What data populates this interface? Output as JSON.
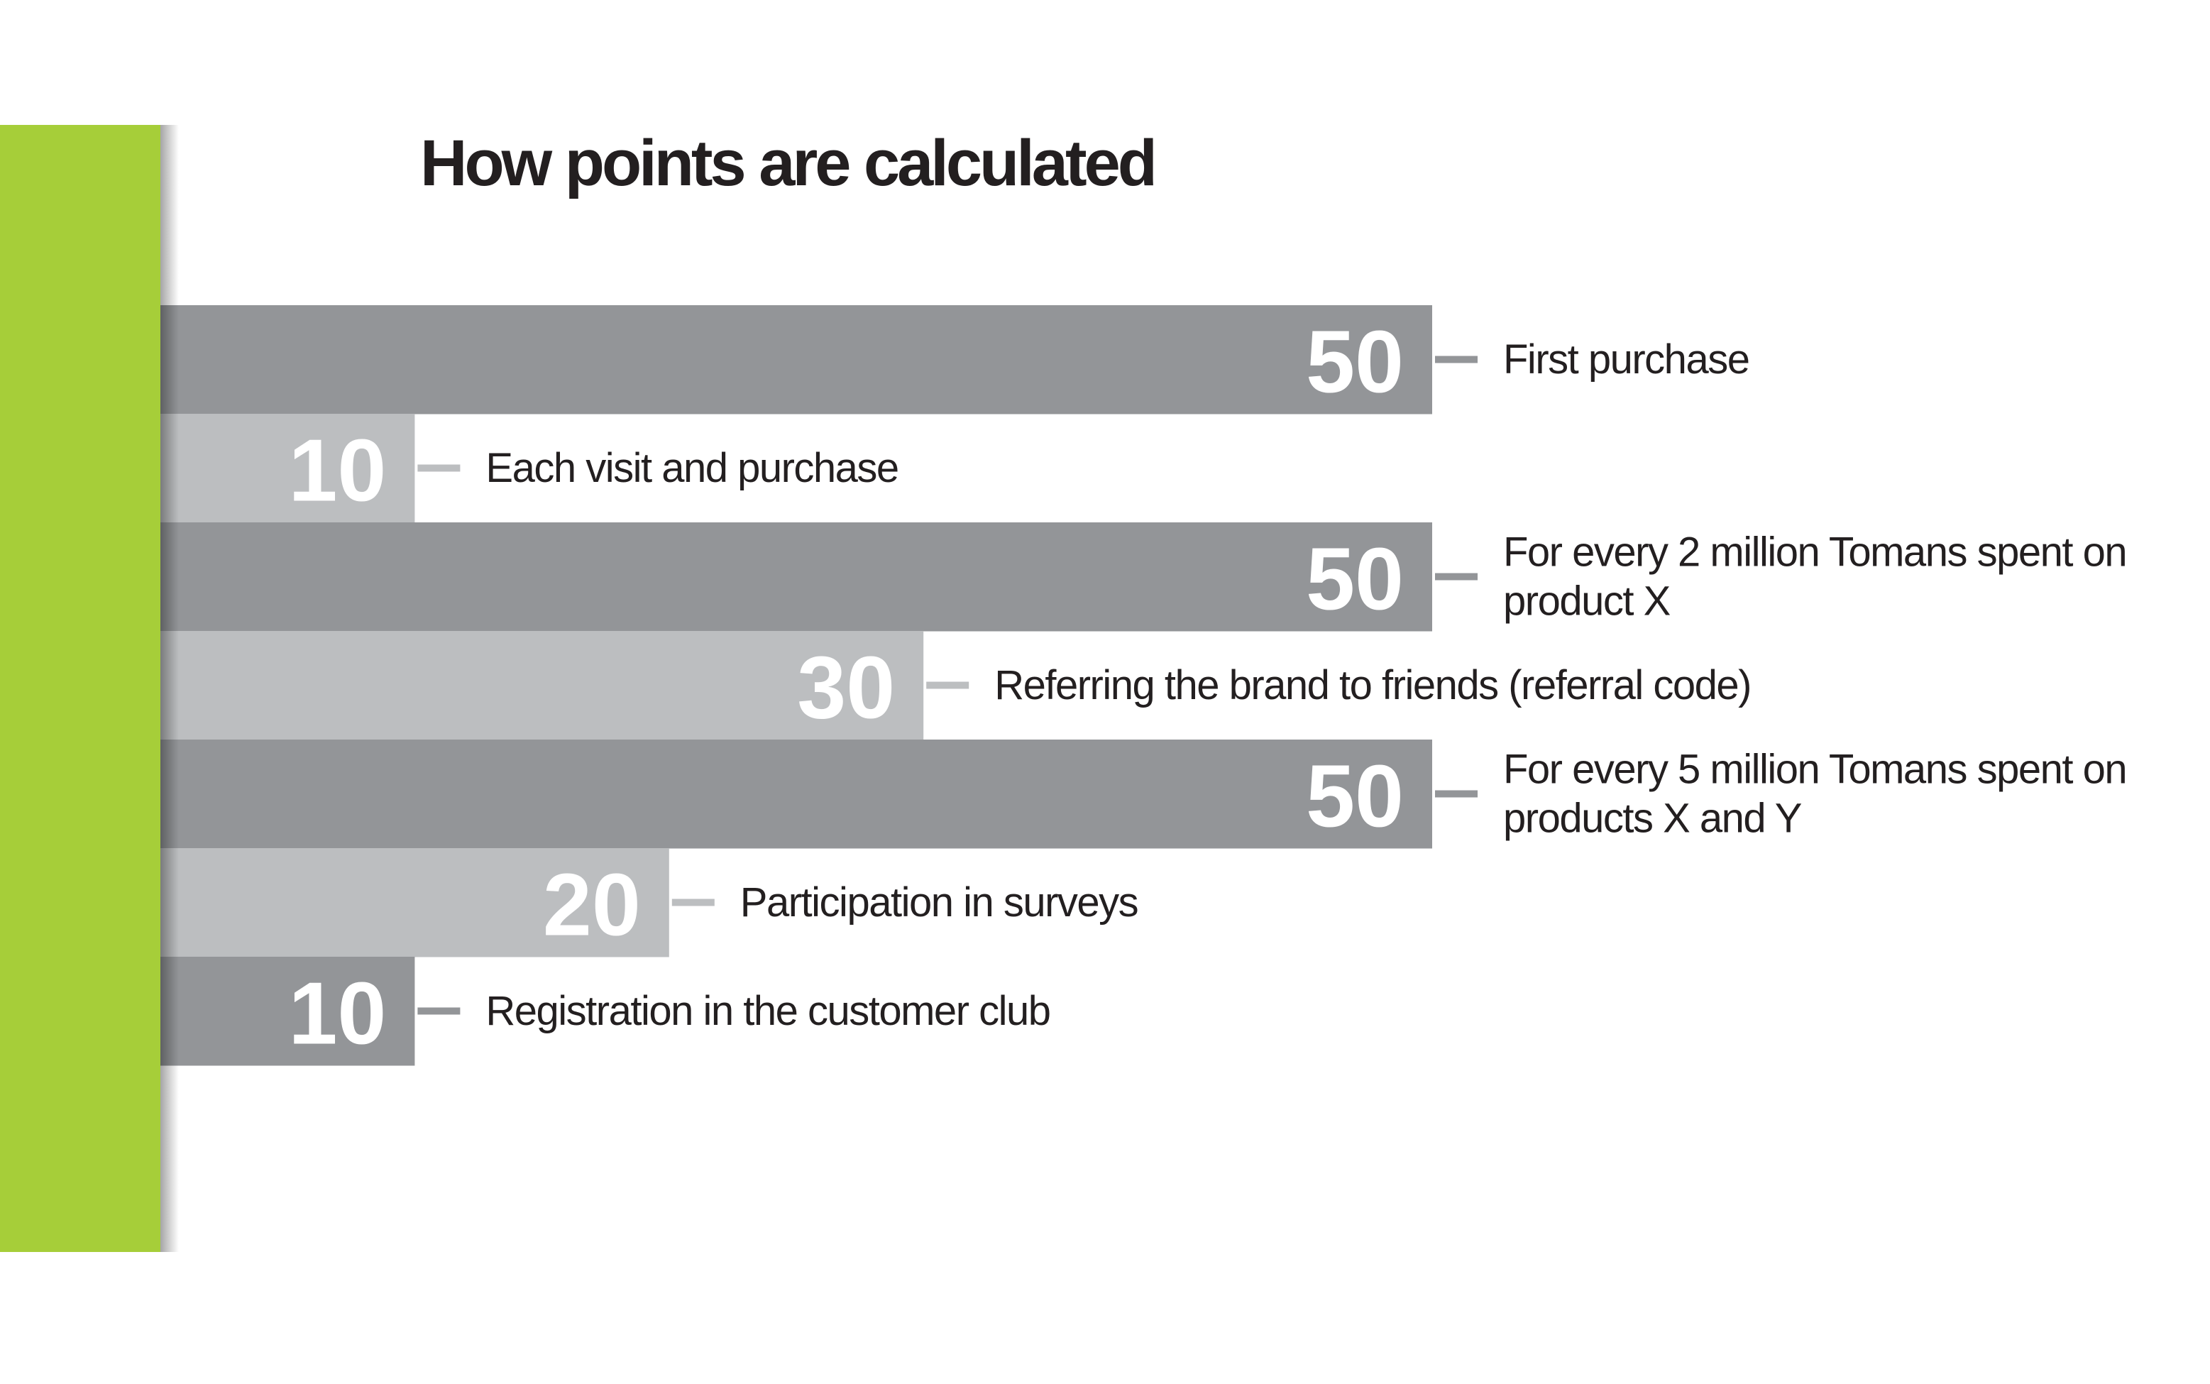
{
  "chart_data": {
    "type": "bar",
    "orientation": "horizontal",
    "title": "How points are calculated",
    "categories": [
      "First purchase",
      "Each visit and purchase",
      "For every 2 million Tomans spent on product X",
      "Referring the brand to friends (referral code)",
      "For every 5 million Tomans spent on products X and Y",
      "Participation in surveys",
      "Registration in the customer club"
    ],
    "values": [
      50,
      10,
      50,
      30,
      50,
      20,
      10
    ],
    "colors": [
      "#939598",
      "#bcbec0",
      "#939598",
      "#bcbec0",
      "#939598",
      "#bcbec0",
      "#939598"
    ],
    "accent_color": "#a6ce39"
  }
}
